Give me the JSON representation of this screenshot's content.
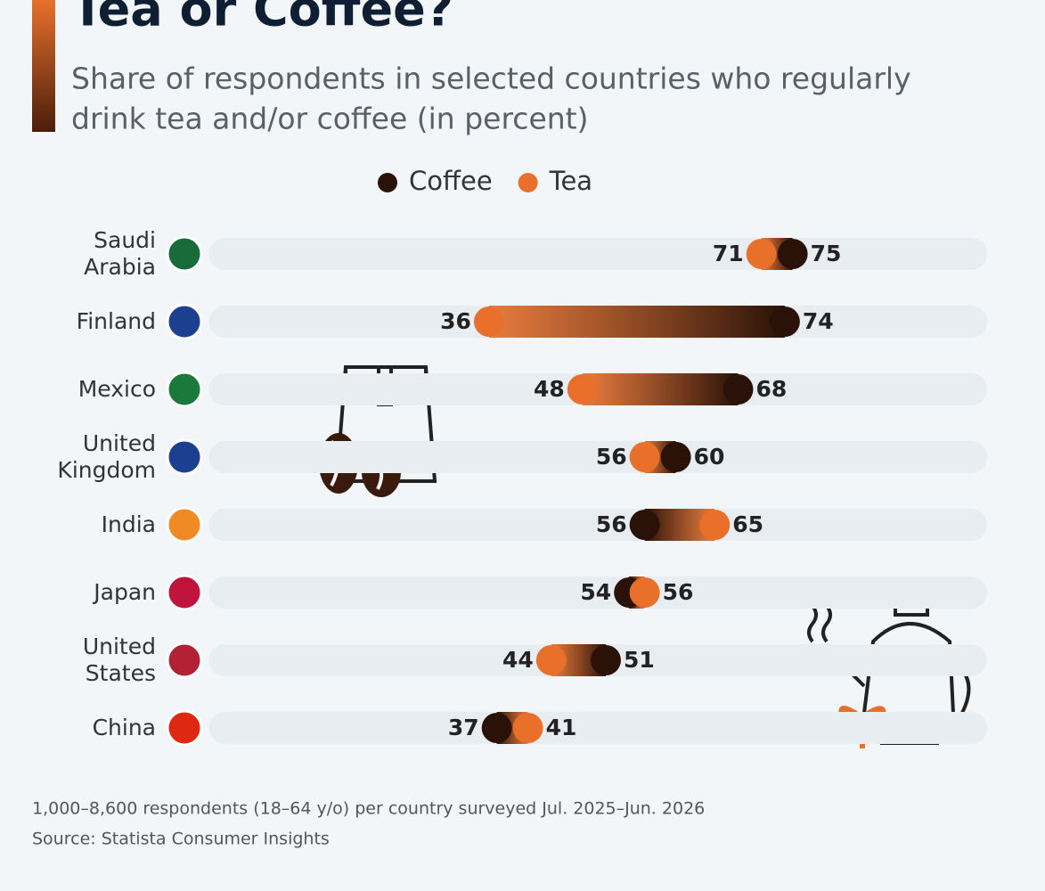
{
  "chart_data": {
    "type": "dumbbell",
    "title": "Tea or Coffee?",
    "subtitle": [
      "Share of respondents in selected countries who regularly",
      "drink tea and/or coffee (in percent)"
    ],
    "categories": [
      "Saudi Arabia",
      "Finland",
      "Mexico",
      "United Kingdom",
      "India",
      "Japan",
      "United States",
      "China"
    ],
    "series": [
      {
        "name": "Coffee",
        "color": "#2a1208",
        "values": [
          75,
          74,
          68,
          60,
          56,
          54,
          51,
          37
        ]
      },
      {
        "name": "Tea",
        "color": "#e8702a",
        "values": [
          71,
          36,
          48,
          56,
          65,
          56,
          44,
          41
        ]
      }
    ],
    "xlim": [
      0,
      100
    ],
    "note": "1,000–8,600 respondents (18–64 y/o) per country surveyed Jul. 2025–Jun. 2026",
    "source": "Source: Statista Consumer Insights"
  }
}
